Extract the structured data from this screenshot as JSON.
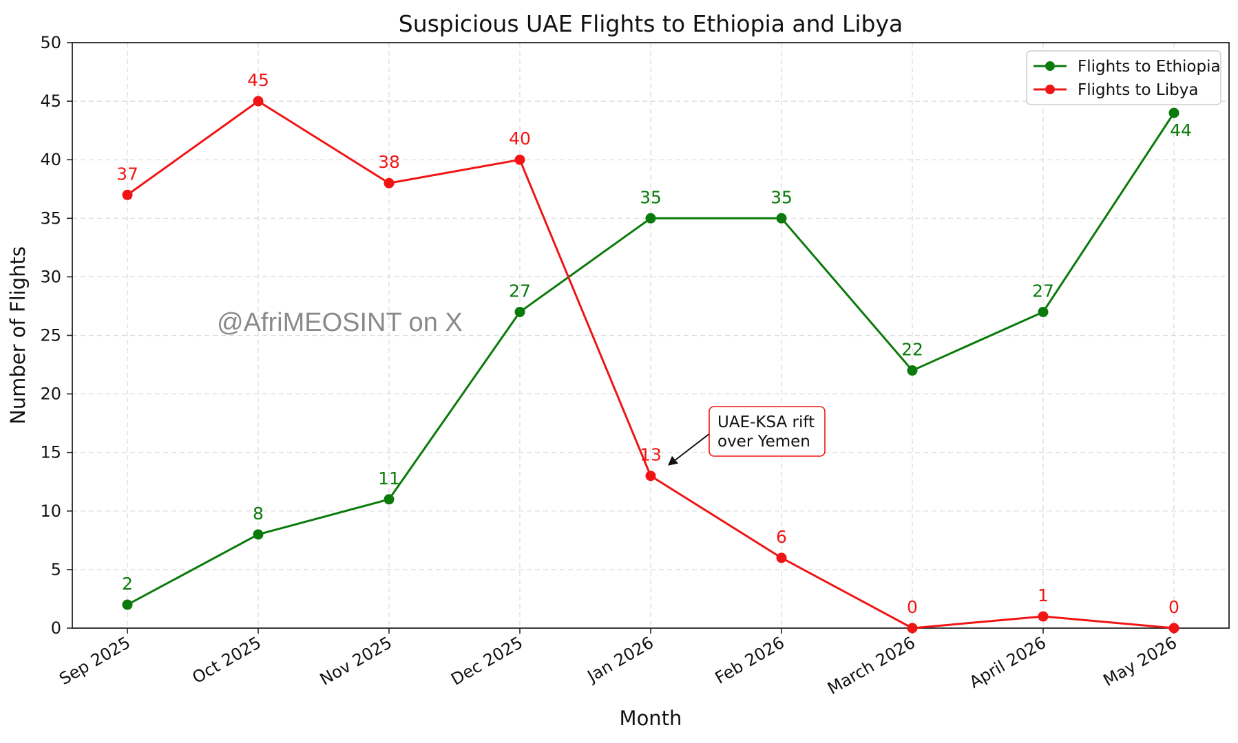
{
  "chart_data": {
    "type": "line",
    "title": "Suspicious UAE Flights to Ethiopia and Libya",
    "xlabel": "Month",
    "ylabel": "Number of Flights",
    "categories": [
      "Sep 2025",
      "Oct 2025",
      "Nov 2025",
      "Dec 2025",
      "Jan 2026",
      "Feb 2026",
      "March 2026",
      "April 2026",
      "May 2026"
    ],
    "ylim": [
      0,
      50
    ],
    "yticks": [
      0,
      5,
      10,
      15,
      20,
      25,
      30,
      35,
      40,
      45,
      50
    ],
    "grid": true,
    "legend_position": "top-right",
    "series": [
      {
        "name": "Flights to Ethiopia",
        "color": "#0a7a0a",
        "values": [
          2,
          8,
          11,
          27,
          35,
          35,
          22,
          27,
          44
        ]
      },
      {
        "name": "Flights to Libya",
        "color": "#f01414",
        "values": [
          37,
          45,
          38,
          40,
          13,
          6,
          0,
          1,
          0
        ]
      }
    ],
    "annotation": {
      "lines": [
        "UAE-KSA rift",
        "over Yemen"
      ],
      "category": "Jan 2026",
      "value": 13,
      "border_color": "#f01414"
    }
  },
  "watermark": "@AfriMEOSINT on X"
}
